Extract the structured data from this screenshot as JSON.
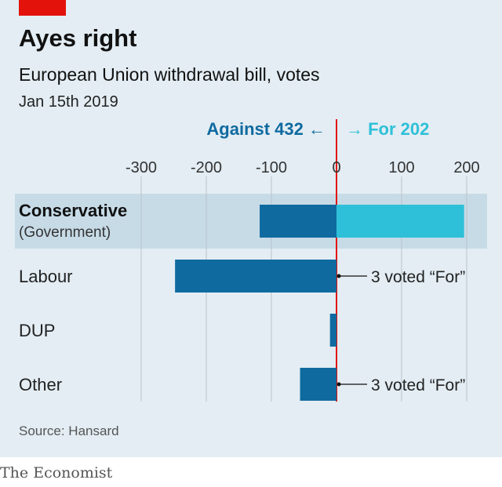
{
  "header": {
    "title": "Ayes right",
    "subtitle": "European Union withdrawal bill, votes",
    "date": "Jan 15th 2019"
  },
  "footer": {
    "source": "Source: Hansard",
    "brand": "The Economist"
  },
  "colors": {
    "against": "#0f6aa0",
    "for": "#2ec0d8",
    "zero_line": "#e3120b",
    "highlight": "#c7dbe7",
    "panel": "#e3edf3"
  },
  "chart_data": {
    "type": "bar",
    "orientation": "horizontal",
    "xlim": [
      -300,
      200
    ],
    "ticks": [
      {
        "value": -300,
        "label": "-300"
      },
      {
        "value": -200,
        "label": "-200"
      },
      {
        "value": -100,
        "label": "-100"
      },
      {
        "value": 0,
        "label": "0"
      },
      {
        "value": 100,
        "label": "100"
      },
      {
        "value": 200,
        "label": "200"
      }
    ],
    "grid": true,
    "against_total_label": "Against 432 ←",
    "for_total_label": "→ For 202",
    "categories": [
      {
        "label": "Conservative",
        "sublabel": "(Government)",
        "highlight": true
      },
      {
        "label": "Labour",
        "sublabel": "",
        "highlight": false
      },
      {
        "label": "DUP",
        "sublabel": "",
        "highlight": false
      },
      {
        "label": "Other",
        "sublabel": "",
        "highlight": false
      }
    ],
    "series": [
      {
        "name": "Against",
        "values": [
          -118,
          -248,
          -10,
          -56
        ]
      },
      {
        "name": "For",
        "values": [
          196,
          3,
          0,
          3
        ]
      }
    ],
    "annotations": [
      {
        "category_index": 1,
        "text": "3 voted “For”"
      },
      {
        "category_index": 3,
        "text": "3 voted “For”"
      }
    ]
  }
}
